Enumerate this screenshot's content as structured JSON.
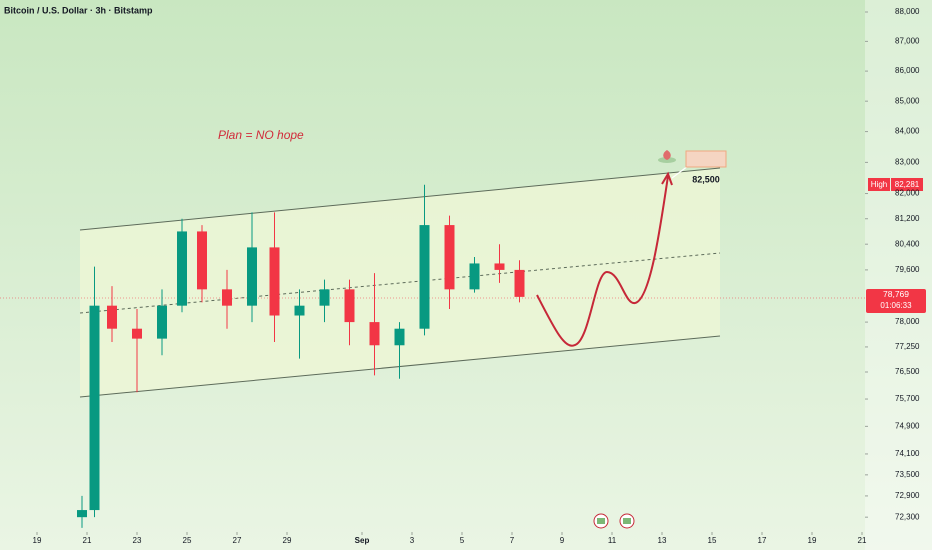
{
  "chart_data": {
    "type": "candlestick",
    "title": "Bitcoin / U.S. Dollar · 3h · Bitstamp",
    "annotation": "Plan = NO hope",
    "log_scale": true,
    "up_color": "#089981",
    "down_color": "#f23645",
    "xlim": [
      -1.48,
      33.12
    ],
    "xticks": [
      {
        "value": 0,
        "label": "19"
      },
      {
        "value": 2,
        "label": "21"
      },
      {
        "value": 4,
        "label": "23"
      },
      {
        "value": 6,
        "label": "25"
      },
      {
        "value": 8,
        "label": "27"
      },
      {
        "value": 10,
        "label": "29"
      },
      {
        "value": 13,
        "label": "Sep"
      },
      {
        "value": 15,
        "label": "3"
      },
      {
        "value": 17,
        "label": "5"
      },
      {
        "value": 19,
        "label": "7"
      },
      {
        "value": 21,
        "label": "9"
      },
      {
        "value": 23,
        "label": "11"
      },
      {
        "value": 25,
        "label": "13"
      },
      {
        "value": 27,
        "label": "15"
      },
      {
        "value": 29,
        "label": "17"
      },
      {
        "value": 31,
        "label": "19"
      },
      {
        "value": 33,
        "label": "21"
      }
    ],
    "ylim": [
      71940,
      88412
    ],
    "yticks": [
      {
        "value": 88000,
        "label": "88,000"
      },
      {
        "value": 87000,
        "label": "87,000"
      },
      {
        "value": 86000,
        "label": "86,000"
      },
      {
        "value": 85000,
        "label": "85,000"
      },
      {
        "value": 84000,
        "label": "84,000"
      },
      {
        "value": 83000,
        "label": "83,000"
      },
      {
        "value": 82000,
        "label": "82,000"
      },
      {
        "value": 81200,
        "label": "81,200"
      },
      {
        "value": 80400,
        "label": "80,400"
      },
      {
        "value": 79600,
        "label": "79,600"
      },
      {
        "value": 78000,
        "label": "78,000"
      },
      {
        "value": 77250,
        "label": "77,250"
      },
      {
        "value": 76500,
        "label": "76,500"
      },
      {
        "value": 75700,
        "label": "75,700"
      },
      {
        "value": 74900,
        "label": "74,900"
      },
      {
        "value": 74100,
        "label": "74,100"
      },
      {
        "value": 73500,
        "label": "73,500"
      },
      {
        "value": 72900,
        "label": "72,900"
      },
      {
        "value": 72300,
        "label": "72,300"
      }
    ],
    "x": [
      1.8,
      2.3,
      3,
      4,
      5,
      5.8,
      6.6,
      7.6,
      8.6,
      9.5,
      10.5,
      11.5,
      12.5,
      13.5,
      14.5,
      15.5,
      16.5,
      17.5,
      18.5,
      19.3
    ],
    "open": [
      72300,
      72500,
      78500,
      77800,
      77500,
      78500,
      80800,
      79000,
      78500,
      80300,
      78200,
      78500,
      79000,
      78000,
      77300,
      77800,
      81000,
      79000,
      79800,
      79600
    ],
    "high": [
      72900,
      79700,
      79100,
      78400,
      79000,
      81200,
      81000,
      79600,
      81400,
      81400,
      79000,
      79300,
      79300,
      79500,
      78000,
      82281,
      81300,
      80000,
      80400,
      79900
    ],
    "low": [
      72000,
      72300,
      77400,
      75900,
      77000,
      78300,
      78600,
      77800,
      78000,
      77400,
      76900,
      78000,
      77300,
      76400,
      76300,
      77600,
      78400,
      78900,
      79200,
      78600
    ],
    "close": [
      72500,
      78500,
      77800,
      77500,
      78500,
      80800,
      79000,
      78500,
      80300,
      78200,
      78500,
      79000,
      78000,
      77300,
      77800,
      81000,
      79000,
      79800,
      79600,
      78769
    ],
    "target": {
      "value": 82500,
      "label": "82,500"
    },
    "high_marker": {
      "label": "High",
      "value": 82281,
      "value_label": "82,281"
    },
    "last_price": {
      "value": 78769,
      "label": "78,769",
      "countdown": "01:06:33"
    }
  }
}
